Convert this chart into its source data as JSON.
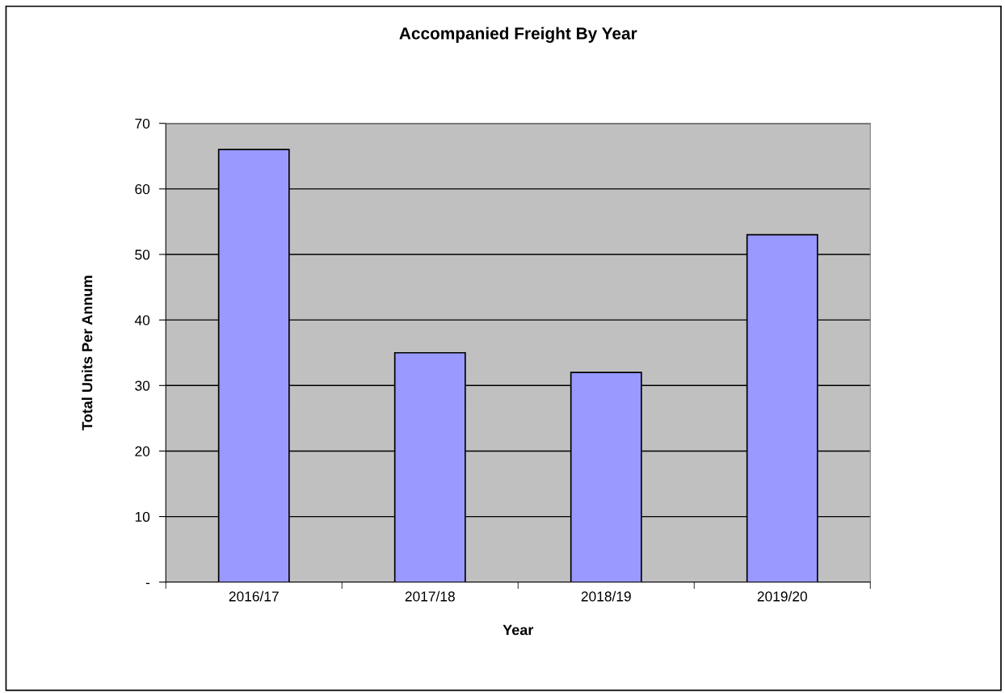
{
  "chart_data": {
    "type": "bar",
    "title": "Accompanied Freight By Year",
    "xlabel": "Year",
    "ylabel": "Total Units Per Annum",
    "categories": [
      "2016/17",
      "2017/18",
      "2018/19",
      "2019/20"
    ],
    "values": [
      66,
      35,
      32,
      53
    ],
    "color": "#9999ff",
    "ylim": [
      0,
      70
    ],
    "yticks": [
      {
        "value": 0,
        "label": "-"
      },
      10,
      20,
      30,
      40,
      50,
      60,
      70
    ],
    "grid": "y",
    "legend": false
  }
}
